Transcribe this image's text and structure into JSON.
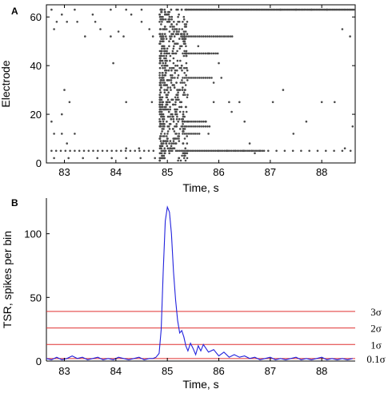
{
  "chart_data": [
    {
      "panel": "A",
      "type": "scatter",
      "xlabel": "Time, s",
      "ylabel": "Electrode",
      "xlim": [
        82.65,
        88.65
      ],
      "ylim": [
        0,
        65
      ],
      "xticks": [
        "83",
        "84",
        "85",
        "86",
        "87",
        "88"
      ],
      "yticks": [
        "0",
        "20",
        "40",
        "60"
      ],
      "marker_color": "#4a4a4a",
      "burst": {
        "t_start": 84.85,
        "t_end": 85.4
      },
      "active_electrodes": [
        2,
        5,
        8,
        12,
        14,
        17,
        20,
        25,
        30,
        35,
        40,
        45,
        48,
        52,
        55,
        58,
        61,
        63
      ],
      "sparse_spikes": [
        {
          "x": 82.75,
          "y": 63
        },
        {
          "x": 82.95,
          "y": 61
        },
        {
          "x": 83.2,
          "y": 63
        },
        {
          "x": 83.55,
          "y": 61
        },
        {
          "x": 83.6,
          "y": 58
        },
        {
          "x": 83.9,
          "y": 63
        },
        {
          "x": 84.2,
          "y": 63
        },
        {
          "x": 84.3,
          "y": 61
        },
        {
          "x": 84.5,
          "y": 63
        },
        {
          "x": 82.85,
          "y": 58
        },
        {
          "x": 83.05,
          "y": 58
        },
        {
          "x": 83.25,
          "y": 58
        },
        {
          "x": 82.8,
          "y": 55
        },
        {
          "x": 83.4,
          "y": 52
        },
        {
          "x": 83.7,
          "y": 55
        },
        {
          "x": 83.9,
          "y": 52
        },
        {
          "x": 84.05,
          "y": 54
        },
        {
          "x": 84.15,
          "y": 52
        },
        {
          "x": 84.5,
          "y": 58
        },
        {
          "x": 84.65,
          "y": 55
        },
        {
          "x": 84.72,
          "y": 52
        },
        {
          "x": 83.95,
          "y": 41
        },
        {
          "x": 83.0,
          "y": 30
        },
        {
          "x": 83.1,
          "y": 25
        },
        {
          "x": 82.95,
          "y": 20
        },
        {
          "x": 82.75,
          "y": 17
        },
        {
          "x": 82.8,
          "y": 12
        },
        {
          "x": 82.95,
          "y": 12
        },
        {
          "x": 83.2,
          "y": 12
        },
        {
          "x": 83.05,
          "y": 8
        },
        {
          "x": 84.2,
          "y": 25
        },
        {
          "x": 84.7,
          "y": 25
        },
        {
          "x": 84.2,
          "y": 6
        },
        {
          "x": 84.45,
          "y": 6
        },
        {
          "x": 85.75,
          "y": 17
        },
        {
          "x": 85.8,
          "y": 12
        },
        {
          "x": 85.9,
          "y": 25
        },
        {
          "x": 86.2,
          "y": 25
        },
        {
          "x": 86.25,
          "y": 21
        },
        {
          "x": 86.4,
          "y": 25
        },
        {
          "x": 86.5,
          "y": 17
        },
        {
          "x": 86.6,
          "y": 8
        },
        {
          "x": 86.7,
          "y": 4
        },
        {
          "x": 87.05,
          "y": 25
        },
        {
          "x": 87.25,
          "y": 30
        },
        {
          "x": 87.45,
          "y": 12
        },
        {
          "x": 87.7,
          "y": 17
        },
        {
          "x": 88.0,
          "y": 25
        },
        {
          "x": 88.25,
          "y": 25
        },
        {
          "x": 88.45,
          "y": 6
        },
        {
          "x": 88.6,
          "y": 15
        },
        {
          "x": 87.2,
          "y": 63
        },
        {
          "x": 87.5,
          "y": 63
        },
        {
          "x": 87.8,
          "y": 63
        },
        {
          "x": 88.1,
          "y": 63
        },
        {
          "x": 88.4,
          "y": 55
        },
        {
          "x": 88.55,
          "y": 52
        },
        {
          "x": 85.6,
          "y": 48
        },
        {
          "x": 85.8,
          "y": 45
        },
        {
          "x": 86.0,
          "y": 41
        },
        {
          "x": 86.05,
          "y": 35
        },
        {
          "x": 85.9,
          "y": 33
        }
      ]
    },
    {
      "panel": "B",
      "type": "line",
      "xlabel": "Time, s",
      "ylabel": "TSR, spikes per bin",
      "xlim": [
        82.65,
        88.65
      ],
      "ylim": [
        0,
        128
      ],
      "xticks": [
        "83",
        "84",
        "85",
        "86",
        "87",
        "88"
      ],
      "yticks": [
        "0",
        "50",
        "100"
      ],
      "line_color": "#2222dd",
      "threshold_color": "#e03030",
      "series": [
        {
          "x": [
            82.65,
            82.75,
            82.85,
            82.95,
            83.05,
            83.15,
            83.25,
            83.35,
            83.45,
            83.55,
            83.65,
            83.75,
            83.85,
            83.95,
            84.05,
            84.15,
            84.25,
            84.35,
            84.45,
            84.55,
            84.65,
            84.72,
            84.78,
            84.84,
            84.88,
            84.92,
            84.96,
            85.0,
            85.04,
            85.08,
            85.12,
            85.16,
            85.2,
            85.24,
            85.28,
            85.32,
            85.36,
            85.4,
            85.45,
            85.5,
            85.55,
            85.6,
            85.65,
            85.7,
            85.8,
            85.9,
            86.0,
            86.1,
            86.2,
            86.3,
            86.4,
            86.5,
            86.6,
            86.7,
            86.8,
            86.9,
            87.0,
            87.1,
            87.2,
            87.3,
            87.4,
            87.5,
            87.6,
            87.7,
            87.8,
            87.9,
            88.0,
            88.1,
            88.2,
            88.3,
            88.4,
            88.5,
            88.6
          ],
          "y": [
            2,
            1,
            3,
            1,
            2,
            4,
            2,
            3,
            1,
            2,
            3,
            1,
            2,
            1,
            3,
            2,
            1,
            2,
            3,
            1,
            2,
            2,
            3,
            6,
            25,
            70,
            110,
            121,
            117,
            100,
            70,
            48,
            32,
            22,
            24,
            19,
            12,
            8,
            14,
            10,
            5,
            12,
            8,
            13,
            7,
            9,
            4,
            7,
            3,
            5,
            3,
            4,
            2,
            3,
            1,
            2,
            3,
            1,
            2,
            1,
            2,
            3,
            1,
            2,
            1,
            2,
            3,
            1,
            2,
            1,
            2,
            1,
            2
          ]
        }
      ],
      "thresholds": [
        {
          "label": "3σ",
          "value": 39
        },
        {
          "label": "2σ",
          "value": 26
        },
        {
          "label": "1σ",
          "value": 13
        },
        {
          "label": "0.1σ",
          "value": 2
        }
      ]
    }
  ]
}
